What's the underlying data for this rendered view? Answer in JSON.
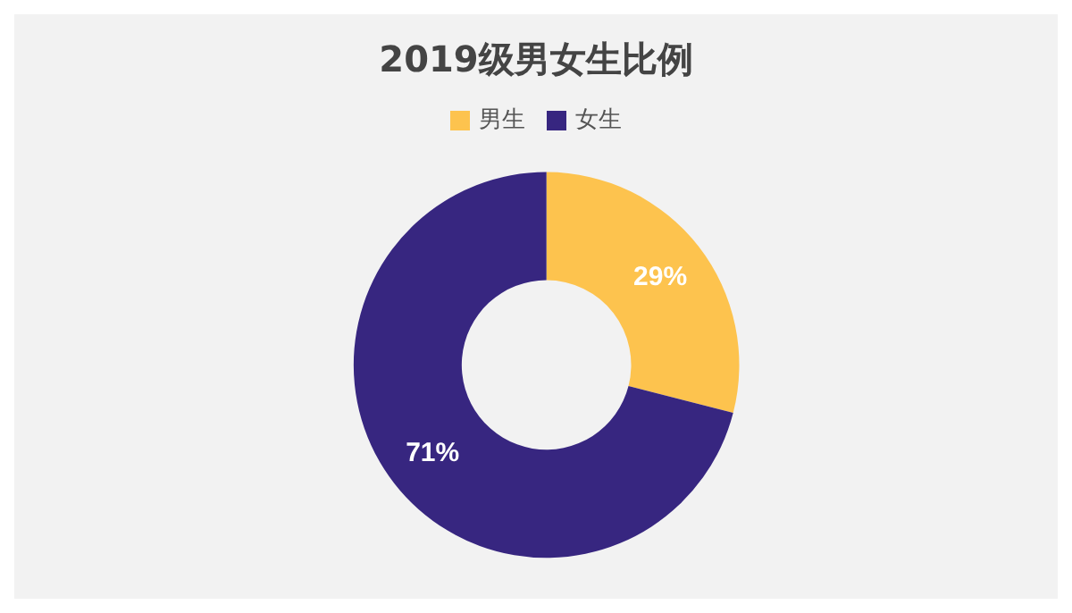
{
  "chart_data": {
    "type": "donut",
    "title": "2019级男女生比例",
    "categories": [
      "男生",
      "女生"
    ],
    "values": [
      29,
      71
    ],
    "value_labels": [
      "29%",
      "71%"
    ],
    "colors": [
      "#fdc34e",
      "#372680"
    ],
    "legend": "top"
  }
}
